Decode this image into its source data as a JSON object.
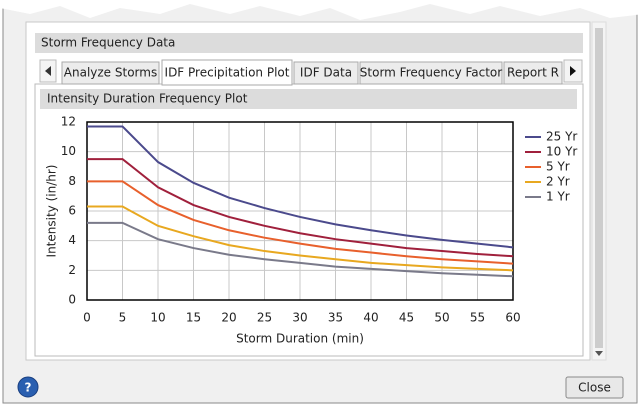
{
  "section_title": "Storm Frequency Data",
  "tabs": [
    "Analyze Storms",
    "IDF Precipitation Plot",
    "IDF Data",
    "Storm Frequency Factor",
    "Report R"
  ],
  "panel_title": "Intensity Duration Frequency Plot",
  "help": "?",
  "close_button": "Close",
  "chart_data": {
    "type": "line",
    "xlabel": "Storm Duration (min)",
    "ylabel": "Intensity (in/hr)",
    "x": [
      0,
      5,
      10,
      15,
      20,
      25,
      30,
      35,
      40,
      45,
      50,
      55,
      60
    ],
    "series": [
      {
        "name": "25 Yr",
        "color": "#4b4a8c",
        "values": [
          11.7,
          11.7,
          9.3,
          7.9,
          6.9,
          6.2,
          5.6,
          5.1,
          4.7,
          4.35,
          4.05,
          3.8,
          3.55
        ]
      },
      {
        "name": "10 Yr",
        "color": "#a0203c",
        "values": [
          9.5,
          9.5,
          7.6,
          6.4,
          5.6,
          5.0,
          4.5,
          4.1,
          3.8,
          3.5,
          3.3,
          3.1,
          2.95
        ]
      },
      {
        "name": "5 Yr",
        "color": "#e8602c",
        "values": [
          8.0,
          8.0,
          6.4,
          5.4,
          4.7,
          4.2,
          3.8,
          3.45,
          3.2,
          2.95,
          2.75,
          2.6,
          2.45
        ]
      },
      {
        "name": "2 Yr",
        "color": "#e8a820",
        "values": [
          6.3,
          6.3,
          5.0,
          4.3,
          3.7,
          3.3,
          3.0,
          2.75,
          2.5,
          2.35,
          2.2,
          2.1,
          2.0
        ]
      },
      {
        "name": "1 Yr",
        "color": "#7a7a8a",
        "values": [
          5.2,
          5.2,
          4.1,
          3.5,
          3.05,
          2.75,
          2.5,
          2.25,
          2.1,
          1.95,
          1.8,
          1.7,
          1.6
        ]
      }
    ],
    "xlim": [
      0,
      60
    ],
    "ylim": [
      0,
      12
    ],
    "xticks": [
      0,
      5,
      10,
      15,
      20,
      25,
      30,
      35,
      40,
      45,
      50,
      55,
      60
    ],
    "yticks": [
      0,
      2,
      4,
      6,
      8,
      10,
      12
    ],
    "grid": true,
    "legend": "right"
  }
}
